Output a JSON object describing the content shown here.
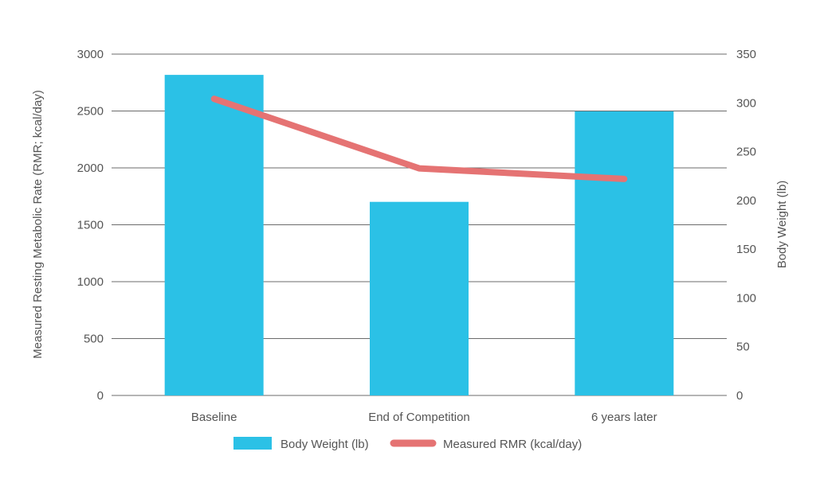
{
  "colors": {
    "bar": "#2bc1e6",
    "line": "#e57373",
    "grid": "#6b6b6b",
    "text": "#555555"
  },
  "chart_data": {
    "type": "bar",
    "categories": [
      "Baseline",
      "End of Competition",
      "6 years later"
    ],
    "series": [
      {
        "name": "Body Weight (lb)",
        "type": "bar",
        "axis": "right",
        "values": [
          328.7,
          198.5,
          291.3
        ]
      },
      {
        "name": "Measured RMR (kcal/day)",
        "type": "line",
        "axis": "left",
        "values": [
          2607,
          1996,
          1903
        ]
      }
    ],
    "ylabel": "Measured Resting Metabolic Rate (RMR; kcal/day)",
    "y2label": "Body Weight (lb)",
    "xlabel": "",
    "ylim": [
      0,
      3000
    ],
    "y2lim": [
      0,
      350
    ],
    "yticks": [
      0,
      500,
      1000,
      1500,
      2000,
      2500,
      3000
    ],
    "y2ticks": [
      0,
      50,
      100,
      150,
      200,
      250,
      300,
      350
    ],
    "grid": true,
    "legend": "bottom"
  }
}
